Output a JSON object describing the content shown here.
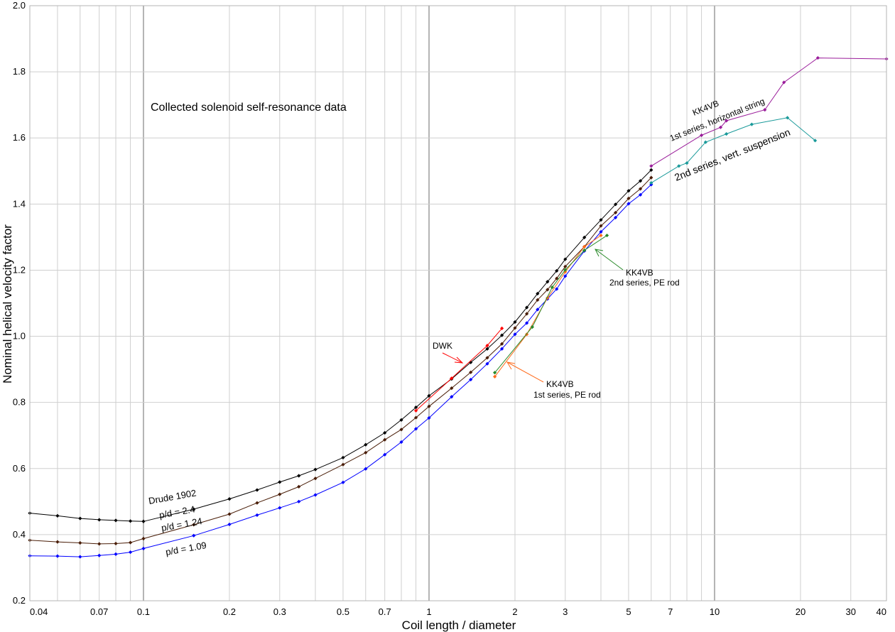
{
  "chart_data": {
    "type": "line",
    "title": "Collected solenoid self-resonance data",
    "xlabel": "Coil length / diameter",
    "ylabel": "Nominal helical velocity factor",
    "x_scale": "log",
    "xlim": [
      0.04,
      40
    ],
    "ylim": [
      0.2,
      2.0
    ],
    "grid": true,
    "x_ticks": [
      0.04,
      0.07,
      0.1,
      0.2,
      0.3,
      0.5,
      0.7,
      1,
      2,
      3,
      5,
      7,
      10,
      20,
      30,
      40
    ],
    "x_tick_labels": [
      "0.04",
      "0.07",
      "0.1",
      "0.2",
      "0.3",
      "0.5",
      "0.7",
      "1",
      "2",
      "3",
      "5",
      "7",
      "10",
      "20",
      "30",
      "40"
    ],
    "y_ticks": [
      0.2,
      0.4,
      0.6,
      0.8,
      1.0,
      1.2,
      1.4,
      1.6,
      1.8,
      2.0
    ],
    "y_tick_labels": [
      "0.2",
      "0.4",
      "0.6",
      "0.8",
      "1.0",
      "1.2",
      "1.4",
      "1.6",
      "1.8",
      "2.0"
    ],
    "series": [
      {
        "color": "#000000",
        "x": [
          0.04,
          0.05,
          0.06,
          0.07,
          0.08,
          0.09,
          0.1,
          0.15,
          0.2,
          0.25,
          0.3,
          0.35,
          0.4,
          0.5,
          0.6,
          0.7,
          0.8,
          0.9,
          1.0,
          1.2,
          1.4,
          1.6,
          1.8,
          2.0,
          2.2,
          2.4,
          2.6,
          2.8,
          3.0,
          3.5,
          4.0,
          4.5,
          5.0,
          5.5,
          6.0
        ],
        "y": [
          0.465,
          0.457,
          0.449,
          0.445,
          0.443,
          0.441,
          0.44,
          0.477,
          0.508,
          0.535,
          0.559,
          0.578,
          0.597,
          0.633,
          0.672,
          0.708,
          0.747,
          0.785,
          0.82,
          0.871,
          0.921,
          0.962,
          1.003,
          1.043,
          1.087,
          1.129,
          1.165,
          1.198,
          1.233,
          1.299,
          1.352,
          1.399,
          1.44,
          1.47,
          1.503
        ]
      },
      {
        "color": "#4a1e08",
        "x": [
          0.04,
          0.05,
          0.06,
          0.07,
          0.08,
          0.09,
          0.1,
          0.15,
          0.2,
          0.25,
          0.3,
          0.35,
          0.4,
          0.5,
          0.6,
          0.7,
          0.8,
          0.9,
          1.0,
          1.2,
          1.4,
          1.6,
          1.8,
          2.0,
          2.2,
          2.4,
          2.6,
          2.8,
          3.0,
          3.5,
          4.0,
          4.5,
          5.0,
          5.5,
          6.0
        ],
        "y": [
          0.383,
          0.378,
          0.375,
          0.372,
          0.373,
          0.376,
          0.388,
          0.43,
          0.462,
          0.496,
          0.522,
          0.545,
          0.57,
          0.612,
          0.648,
          0.687,
          0.718,
          0.754,
          0.788,
          0.843,
          0.891,
          0.935,
          0.977,
          1.025,
          1.068,
          1.11,
          1.141,
          1.175,
          1.211,
          1.271,
          1.334,
          1.374,
          1.417,
          1.446,
          1.48
        ]
      },
      {
        "color": "#0000ff",
        "x": [
          0.04,
          0.05,
          0.06,
          0.07,
          0.08,
          0.09,
          0.1,
          0.15,
          0.2,
          0.25,
          0.3,
          0.35,
          0.4,
          0.5,
          0.6,
          0.7,
          0.8,
          0.9,
          1.0,
          1.2,
          1.4,
          1.6,
          1.8,
          2.0,
          2.2,
          2.4,
          2.6,
          2.8,
          3.0,
          3.5,
          4.0,
          4.5,
          5.0,
          5.5,
          6.0
        ],
        "y": [
          0.336,
          0.335,
          0.333,
          0.337,
          0.341,
          0.347,
          0.358,
          0.397,
          0.431,
          0.459,
          0.481,
          0.5,
          0.52,
          0.558,
          0.599,
          0.642,
          0.68,
          0.72,
          0.753,
          0.817,
          0.869,
          0.917,
          0.962,
          1.006,
          1.04,
          1.081,
          1.113,
          1.143,
          1.182,
          1.258,
          1.316,
          1.359,
          1.401,
          1.428,
          1.459
        ]
      },
      {
        "color": "#ff0000",
        "x": [
          0.9,
          1.2,
          1.6,
          1.8
        ],
        "y": [
          0.775,
          0.873,
          0.972,
          1.024
        ]
      },
      {
        "color": "#ff6a1a",
        "x": [
          1.7,
          2.2,
          2.6,
          3.0,
          3.5,
          4.0
        ],
        "y": [
          0.878,
          1.006,
          1.116,
          1.195,
          1.271,
          1.305
        ]
      },
      {
        "color": "#2a8a2a",
        "x": [
          1.7,
          2.3,
          2.7,
          3.0,
          3.5,
          4.2
        ],
        "y": [
          0.89,
          1.028,
          1.148,
          1.201,
          1.26,
          1.305
        ]
      },
      {
        "color": "#9a1c9a",
        "x": [
          6.0,
          9.0,
          10.5,
          11.0,
          15.0,
          17.5,
          23.0,
          40.0
        ],
        "y": [
          1.515,
          1.608,
          1.632,
          1.652,
          1.685,
          1.768,
          1.842,
          1.839
        ]
      },
      {
        "color": "#1a9a9a",
        "x": [
          6.0,
          7.5,
          8.0,
          9.3,
          11.0,
          13.5,
          18.0,
          22.5
        ],
        "y": [
          1.464,
          1.515,
          1.524,
          1.587,
          1.612,
          1.641,
          1.661,
          1.592
        ]
      }
    ],
    "annotations": [
      {
        "id": "drude-title",
        "text": "Drude 1902"
      },
      {
        "id": "p24",
        "text": "p/d = 2.4"
      },
      {
        "id": "p124",
        "text": "p/d = 1.24"
      },
      {
        "id": "p109",
        "text": "p/d = 1.09"
      },
      {
        "id": "dwk",
        "text": "DWK"
      },
      {
        "id": "kk-pe1-a",
        "text": "KK4VB"
      },
      {
        "id": "kk-pe1-b",
        "text": "1st series, PE rod"
      },
      {
        "id": "kk-pe2-a",
        "text": "KK4VB"
      },
      {
        "id": "kk-pe2-b",
        "text": "2nd series, PE rod"
      },
      {
        "id": "kk-h-a",
        "text": "KK4VB"
      },
      {
        "id": "kk-h-b",
        "text": "1st series, horizontal string"
      },
      {
        "id": "kk-v",
        "text": "2nd series,  vert. suspension"
      }
    ]
  }
}
